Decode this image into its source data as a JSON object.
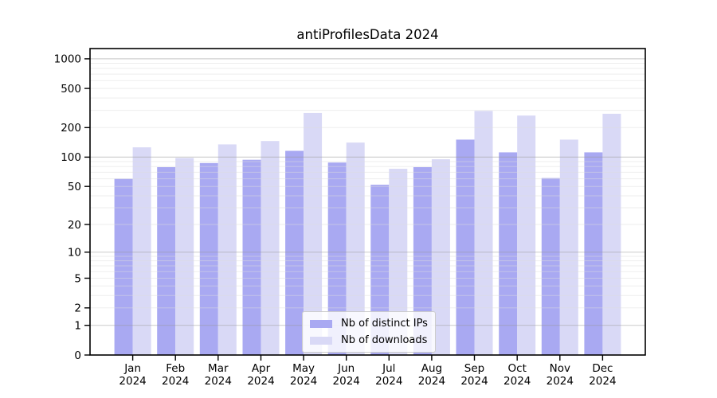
{
  "title": "antiProfilesData 2024",
  "legend": {
    "entries": [
      {
        "label": "Nb of distinct IPs"
      },
      {
        "label": "Nb of downloads"
      }
    ]
  },
  "colors": {
    "series_ips": "#a9a9f2",
    "series_downloads": "#d9d9f6",
    "major_grid": "#999999",
    "minor_grid": "#dddddd",
    "spine": "#000000"
  },
  "chart_data": {
    "type": "bar",
    "title": "antiProfilesData 2024",
    "yscale": "symlog",
    "grid": true,
    "legend_position": "lower center",
    "xlabel": "",
    "ylabel": "",
    "year": "2024",
    "months": [
      "Jan",
      "Feb",
      "Mar",
      "Apr",
      "May",
      "Jun",
      "Jul",
      "Aug",
      "Sep",
      "Oct",
      "Nov",
      "Dec"
    ],
    "categories": [
      "Jan 2024",
      "Feb 2024",
      "Mar 2024",
      "Apr 2024",
      "May 2024",
      "Jun 2024",
      "Jul 2024",
      "Aug 2024",
      "Sep 2024",
      "Oct 2024",
      "Nov 2024",
      "Dec 2024"
    ],
    "series": [
      {
        "name": "Nb of distinct IPs",
        "color": "#a9a9f2",
        "values": [
          60,
          79,
          87,
          94,
          116,
          88,
          52,
          79,
          151,
          112,
          61,
          112
        ]
      },
      {
        "name": "Nb of downloads",
        "color": "#d9d9f6",
        "values": [
          126,
          98,
          135,
          146,
          282,
          141,
          76,
          95,
          296,
          265,
          151,
          277
        ]
      }
    ],
    "yticks": [
      0,
      1,
      2,
      5,
      10,
      20,
      50,
      100,
      200,
      500,
      1000
    ],
    "ytick_labels": [
      "0",
      "1",
      "2",
      "5",
      "10",
      "20",
      "50",
      "100",
      "200",
      "500",
      "1000"
    ],
    "ylim": [
      0,
      1270
    ]
  }
}
